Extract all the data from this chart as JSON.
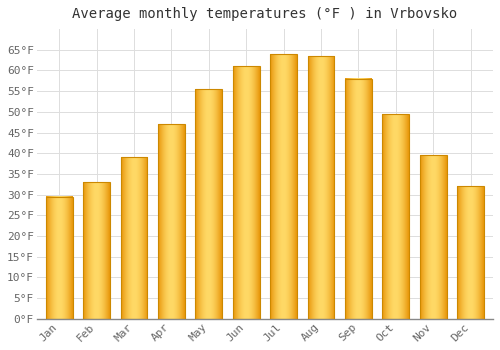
{
  "title": "Average monthly temperatures (°F ) in Vrbovsko",
  "months": [
    "Jan",
    "Feb",
    "Mar",
    "Apr",
    "May",
    "Jun",
    "Jul",
    "Aug",
    "Sep",
    "Oct",
    "Nov",
    "Dec"
  ],
  "values": [
    29.5,
    33.0,
    39.0,
    47.0,
    55.5,
    61.0,
    64.0,
    63.5,
    58.0,
    49.5,
    39.5,
    32.0
  ],
  "bar_color_light": "#FFD966",
  "bar_color_mid": "#FFBB33",
  "bar_color_dark": "#E8960A",
  "bar_edge_color": "#CC8800",
  "ylim": [
    0,
    70
  ],
  "yticks": [
    0,
    5,
    10,
    15,
    20,
    25,
    30,
    35,
    40,
    45,
    50,
    55,
    60,
    65
  ],
  "ytick_labels": [
    "0°F",
    "5°F",
    "10°F",
    "15°F",
    "20°F",
    "25°F",
    "30°F",
    "35°F",
    "40°F",
    "45°F",
    "50°F",
    "55°F",
    "60°F",
    "65°F"
  ],
  "background_color": "#FFFFFF",
  "grid_color": "#DDDDDD",
  "title_fontsize": 10,
  "tick_fontsize": 8,
  "font_family": "monospace"
}
